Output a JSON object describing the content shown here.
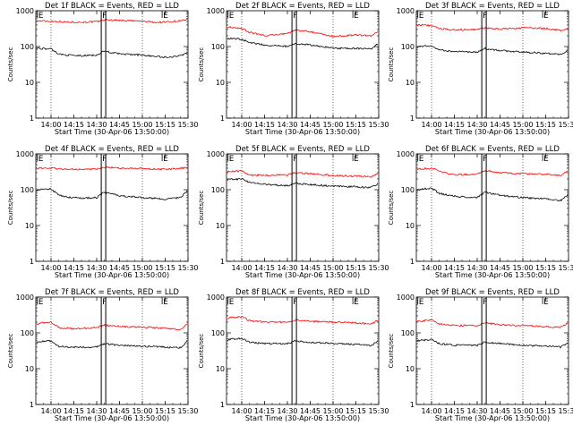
{
  "chart_data": [
    {
      "type": "line",
      "title": "Det 1f BLACK = Events, RED = LLD",
      "xlabel": "Start Time (30-Apr-06 13:50:00)",
      "ylabel": "Counts/sec",
      "yscale": "log",
      "ylim": [
        1,
        1000
      ],
      "xlim": [
        "13:50",
        "15:30"
      ],
      "xticks": [
        "14:00",
        "14:15",
        "14:30",
        "14:45",
        "15:00",
        "15:15",
        "15:30"
      ],
      "yticks": [
        "1",
        "10",
        "100",
        "1000"
      ],
      "markers": [
        {
          "label": "E",
          "x": "13:51"
        },
        {
          "label": "F",
          "x": "14:33"
        },
        {
          "label": "E",
          "x": "15:13"
        }
      ],
      "series": [
        {
          "color": "#ff0000",
          "x": [
            "13:50",
            "14:05",
            "14:10",
            "14:20",
            "14:30",
            "14:35",
            "14:45",
            "15:00",
            "15:10",
            "15:20",
            "15:30"
          ],
          "values": [
            520,
            500,
            480,
            480,
            490,
            560,
            540,
            510,
            470,
            500,
            560
          ]
        },
        {
          "color": "#000000",
          "x": [
            "13:50",
            "14:00",
            "14:05",
            "14:10",
            "14:20",
            "14:30",
            "14:35",
            "14:45",
            "15:00",
            "15:15",
            "15:25",
            "15:30"
          ],
          "values": [
            90,
            85,
            62,
            58,
            55,
            58,
            75,
            62,
            58,
            50,
            55,
            70
          ]
        }
      ]
    },
    {
      "type": "line",
      "title": "Det 2f BLACK = Events, RED = LLD",
      "xlabel": "Start Time (30-Apr-06 13:50:00)",
      "ylabel": "Counts/sec",
      "yscale": "log",
      "ylim": [
        1,
        1000
      ],
      "xlim": [
        "13:50",
        "15:30"
      ],
      "xticks": [
        "14:00",
        "14:15",
        "14:30",
        "14:45",
        "15:00",
        "15:15",
        "15:30"
      ],
      "yticks": [
        "1",
        "10",
        "100",
        "1000"
      ],
      "markers": [
        {
          "label": "E",
          "x": "13:51"
        },
        {
          "label": "F",
          "x": "14:33"
        },
        {
          "label": "E",
          "x": "15:13"
        }
      ],
      "series": [
        {
          "color": "#ff0000",
          "x": [
            "13:50",
            "14:00",
            "14:05",
            "14:15",
            "14:30",
            "14:35",
            "14:45",
            "15:00",
            "15:15",
            "15:25",
            "15:30"
          ],
          "values": [
            350,
            320,
            250,
            200,
            230,
            290,
            260,
            190,
            210,
            200,
            260
          ]
        },
        {
          "color": "#000000",
          "x": [
            "13:50",
            "14:00",
            "14:05",
            "14:15",
            "14:30",
            "14:35",
            "14:45",
            "15:00",
            "15:15",
            "15:25",
            "15:30"
          ],
          "values": [
            170,
            160,
            130,
            110,
            100,
            120,
            110,
            90,
            88,
            85,
            120
          ]
        }
      ]
    },
    {
      "type": "line",
      "title": "Det 3f BLACK = Events, RED = LLD",
      "xlabel": "Start Time (30-Apr-06 13:50:00)",
      "ylabel": "Counts/sec",
      "yscale": "log",
      "ylim": [
        1,
        1000
      ],
      "xlim": [
        "13:50",
        "15:30"
      ],
      "xticks": [
        "14:00",
        "14:15",
        "14:30",
        "14:45",
        "15:00",
        "15:15",
        "15:30"
      ],
      "yticks": [
        "1",
        "10",
        "100",
        "1000"
      ],
      "markers": [
        {
          "label": "E",
          "x": "13:51"
        },
        {
          "label": "F",
          "x": "14:33"
        },
        {
          "label": "E",
          "x": "15:13"
        }
      ],
      "series": [
        {
          "color": "#ff0000",
          "x": [
            "13:50",
            "14:00",
            "14:05",
            "14:15",
            "14:30",
            "14:35",
            "14:45",
            "15:00",
            "15:15",
            "15:25",
            "15:30"
          ],
          "values": [
            400,
            390,
            320,
            290,
            300,
            330,
            310,
            330,
            320,
            280,
            330
          ]
        },
        {
          "color": "#000000",
          "x": [
            "13:50",
            "14:00",
            "14:05",
            "14:15",
            "14:30",
            "14:35",
            "14:45",
            "15:00",
            "15:15",
            "15:25",
            "15:30"
          ],
          "values": [
            100,
            105,
            80,
            72,
            70,
            88,
            78,
            70,
            65,
            60,
            80
          ]
        }
      ]
    },
    {
      "type": "line",
      "title": "Det 4f BLACK = Events, RED = LLD",
      "xlabel": "Start Time (30-Apr-06 13:50:00)",
      "ylabel": "Counts/sec",
      "yscale": "log",
      "ylim": [
        1,
        1000
      ],
      "xlim": [
        "13:50",
        "15:30"
      ],
      "xticks": [
        "14:00",
        "14:15",
        "14:30",
        "14:45",
        "15:00",
        "15:15",
        "15:30"
      ],
      "yticks": [
        "1",
        "10",
        "100",
        "1000"
      ],
      "markers": [
        {
          "label": "E",
          "x": "13:51"
        },
        {
          "label": "F",
          "x": "14:33"
        },
        {
          "label": "E",
          "x": "15:13"
        }
      ],
      "series": [
        {
          "color": "#ff0000",
          "x": [
            "13:50",
            "14:05",
            "14:10",
            "14:20",
            "14:30",
            "14:35",
            "14:45",
            "15:00",
            "15:10",
            "15:20",
            "15:30"
          ],
          "values": [
            400,
            390,
            370,
            370,
            380,
            430,
            400,
            390,
            370,
            380,
            420
          ]
        },
        {
          "color": "#000000",
          "x": [
            "13:50",
            "14:00",
            "14:05",
            "14:10",
            "14:20",
            "14:30",
            "14:35",
            "14:45",
            "15:00",
            "15:15",
            "15:25",
            "15:30"
          ],
          "values": [
            100,
            105,
            70,
            62,
            58,
            60,
            85,
            68,
            60,
            55,
            60,
            95
          ]
        }
      ]
    },
    {
      "type": "line",
      "title": "Det 5f BLACK = Events, RED = LLD",
      "xlabel": "Start Time (30-Apr-06 13:50:00)",
      "ylabel": "Counts/sec",
      "yscale": "log",
      "ylim": [
        1,
        1000
      ],
      "xlim": [
        "13:50",
        "15:30"
      ],
      "xticks": [
        "14:00",
        "14:15",
        "14:30",
        "14:45",
        "15:00",
        "15:15",
        "15:30"
      ],
      "yticks": [
        "1",
        "10",
        "100",
        "1000"
      ],
      "markers": [
        {
          "label": "E",
          "x": "13:51"
        },
        {
          "label": "F",
          "x": "14:33"
        },
        {
          "label": "E",
          "x": "15:13"
        }
      ],
      "series": [
        {
          "color": "#ff0000",
          "x": [
            "13:50",
            "14:00",
            "14:05",
            "14:15",
            "14:30",
            "14:35",
            "14:45",
            "15:00",
            "15:15",
            "15:25",
            "15:30"
          ],
          "values": [
            320,
            330,
            260,
            250,
            260,
            300,
            280,
            250,
            240,
            230,
            280
          ]
        },
        {
          "color": "#000000",
          "x": [
            "13:50",
            "14:00",
            "14:05",
            "14:15",
            "14:30",
            "14:35",
            "14:45",
            "15:00",
            "15:15",
            "15:25",
            "15:30"
          ],
          "values": [
            190,
            200,
            160,
            140,
            130,
            150,
            140,
            125,
            120,
            115,
            150
          ]
        }
      ]
    },
    {
      "type": "line",
      "title": "Det 6f BLACK = Events, RED = LLD",
      "xlabel": "Start Time (30-Apr-06 13:50:00)",
      "ylabel": "Counts/sec",
      "yscale": "log",
      "ylim": [
        1,
        1000
      ],
      "xlim": [
        "13:50",
        "15:30"
      ],
      "xticks": [
        "14:00",
        "14:15",
        "14:30",
        "14:45",
        "15:00",
        "15:15",
        "15:30"
      ],
      "yticks": [
        "1",
        "10",
        "100",
        "1000"
      ],
      "markers": [
        {
          "label": "E",
          "x": "13:51"
        },
        {
          "label": "F",
          "x": "14:33"
        },
        {
          "label": "E",
          "x": "15:13"
        }
      ],
      "series": [
        {
          "color": "#ff0000",
          "x": [
            "13:50",
            "14:00",
            "14:05",
            "14:15",
            "14:30",
            "14:35",
            "14:45",
            "15:00",
            "15:15",
            "15:25",
            "15:30"
          ],
          "values": [
            370,
            400,
            330,
            260,
            270,
            340,
            300,
            280,
            270,
            250,
            350
          ]
        },
        {
          "color": "#000000",
          "x": [
            "13:50",
            "14:00",
            "14:05",
            "14:15",
            "14:30",
            "14:35",
            "14:45",
            "15:00",
            "15:15",
            "15:25",
            "15:30"
          ],
          "values": [
            100,
            110,
            80,
            65,
            60,
            85,
            70,
            60,
            55,
            50,
            75
          ]
        }
      ]
    },
    {
      "type": "line",
      "title": "Det 7f BLACK = Events, RED = LLD",
      "xlabel": "Start Time (30-Apr-06 13:50:00)",
      "ylabel": "Counts/sec",
      "yscale": "log",
      "ylim": [
        1,
        1000
      ],
      "xlim": [
        "13:50",
        "15:30"
      ],
      "xticks": [
        "14:00",
        "14:15",
        "14:30",
        "14:45",
        "15:00",
        "15:15",
        "15:30"
      ],
      "yticks": [
        "1",
        "10",
        "100",
        "1000"
      ],
      "markers": [
        {
          "label": "E",
          "x": "13:51"
        },
        {
          "label": "F",
          "x": "14:33"
        },
        {
          "label": "E",
          "x": "15:13"
        }
      ],
      "series": [
        {
          "color": "#ff0000",
          "x": [
            "13:50",
            "14:00",
            "14:05",
            "14:15",
            "14:30",
            "14:35",
            "14:45",
            "15:00",
            "15:15",
            "15:25",
            "15:30"
          ],
          "values": [
            180,
            200,
            140,
            130,
            140,
            165,
            150,
            145,
            135,
            125,
            190
          ]
        },
        {
          "color": "#000000",
          "x": [
            "13:50",
            "14:00",
            "14:05",
            "14:15",
            "14:30",
            "14:35",
            "14:45",
            "15:00",
            "15:15",
            "15:25",
            "15:30"
          ],
          "values": [
            55,
            60,
            42,
            40,
            40,
            50,
            45,
            42,
            40,
            38,
            60
          ]
        }
      ]
    },
    {
      "type": "line",
      "title": "Det 8f BLACK = Events, RED = LLD",
      "xlabel": "Start Time (30-Apr-06 13:50:00)",
      "ylabel": "Counts/sec",
      "yscale": "log",
      "ylim": [
        1,
        1000
      ],
      "xlim": [
        "13:50",
        "15:30"
      ],
      "xticks": [
        "14:00",
        "14:15",
        "14:30",
        "14:45",
        "15:00",
        "15:15",
        "15:30"
      ],
      "yticks": [
        "1",
        "10",
        "100",
        "1000"
      ],
      "markers": [
        {
          "label": "E",
          "x": "13:51"
        },
        {
          "label": "F",
          "x": "14:33"
        },
        {
          "label": "E",
          "x": "15:13"
        }
      ],
      "series": [
        {
          "color": "#ff0000",
          "x": [
            "13:50",
            "14:00",
            "14:05",
            "14:15",
            "14:30",
            "14:35",
            "14:45",
            "15:00",
            "15:15",
            "15:25",
            "15:30"
          ],
          "values": [
            260,
            280,
            220,
            200,
            200,
            230,
            210,
            200,
            190,
            180,
            230
          ]
        },
        {
          "color": "#000000",
          "x": [
            "13:50",
            "14:00",
            "14:05",
            "14:15",
            "14:30",
            "14:35",
            "14:45",
            "15:00",
            "15:15",
            "15:25",
            "15:30"
          ],
          "values": [
            65,
            70,
            55,
            50,
            50,
            60,
            55,
            50,
            48,
            45,
            60
          ]
        }
      ]
    },
    {
      "type": "line",
      "title": "Det 9f BLACK = Events, RED = LLD",
      "xlabel": "Start Time (30-Apr-06 13:50:00)",
      "ylabel": "Counts/sec",
      "yscale": "log",
      "ylim": [
        1,
        1000
      ],
      "xlim": [
        "13:50",
        "15:30"
      ],
      "xticks": [
        "14:00",
        "14:15",
        "14:30",
        "14:45",
        "15:00",
        "15:15",
        "15:30"
      ],
      "yticks": [
        "1",
        "10",
        "100",
        "1000"
      ],
      "markers": [
        {
          "label": "E",
          "x": "13:51"
        },
        {
          "label": "F",
          "x": "14:33"
        },
        {
          "label": "E",
          "x": "15:13"
        }
      ],
      "series": [
        {
          "color": "#ff0000",
          "x": [
            "13:50",
            "14:00",
            "14:05",
            "14:15",
            "14:30",
            "14:35",
            "14:45",
            "15:00",
            "15:15",
            "15:25",
            "15:30"
          ],
          "values": [
            210,
            230,
            180,
            160,
            160,
            190,
            170,
            160,
            150,
            145,
            190
          ]
        },
        {
          "color": "#000000",
          "x": [
            "13:50",
            "14:00",
            "14:05",
            "14:15",
            "14:30",
            "14:35",
            "14:45",
            "15:00",
            "15:15",
            "15:25",
            "15:30"
          ],
          "values": [
            60,
            65,
            50,
            45,
            45,
            55,
            50,
            45,
            42,
            40,
            55
          ]
        }
      ]
    }
  ]
}
